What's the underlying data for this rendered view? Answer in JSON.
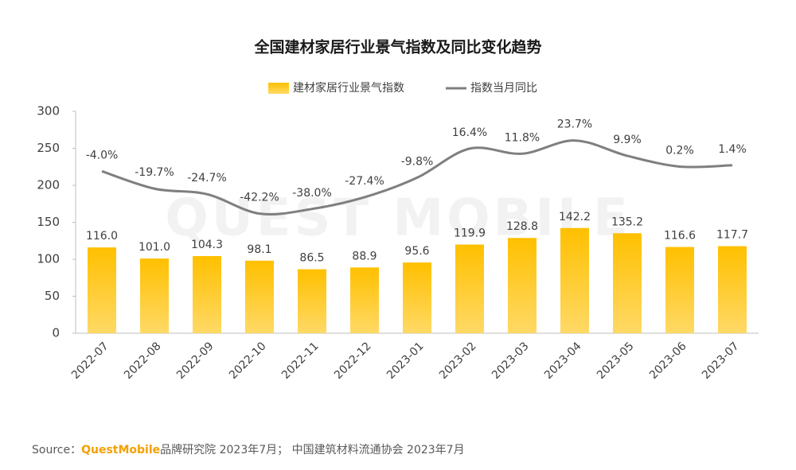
{
  "chart_data": {
    "type": "bar-line",
    "title": "全国建材家居行业景气指数及同比变化趋势",
    "watermark": "QUEST MOBILE",
    "categories": [
      "2022-07",
      "2022-08",
      "2022-09",
      "2022-10",
      "2022-11",
      "2022-12",
      "2023-01",
      "2023-02",
      "2023-03",
      "2023-04",
      "2023-05",
      "2023-06",
      "2023-07"
    ],
    "series": [
      {
        "name": "建材家居行业景气指数",
        "type": "bar",
        "color": "#ffc000",
        "values": [
          116.0,
          101.0,
          104.3,
          98.1,
          86.5,
          88.9,
          95.6,
          119.9,
          128.8,
          142.2,
          135.2,
          116.6,
          117.7
        ],
        "value_labels": [
          "116.0",
          "101.0",
          "104.3",
          "98.1",
          "86.5",
          "88.9",
          "95.6",
          "119.9",
          "128.8",
          "142.2",
          "135.2",
          "116.6",
          "117.7"
        ]
      },
      {
        "name": "指数当月同比",
        "type": "line",
        "color": "#7f7f7f",
        "axis": "y2",
        "smooth": true,
        "values": [
          -4.0,
          -19.7,
          -24.7,
          -42.2,
          -38.0,
          -27.4,
          -9.8,
          16.4,
          11.8,
          23.7,
          9.9,
          0.2,
          1.4
        ],
        "value_labels": [
          "-4.0%",
          "-19.7%",
          "-24.7%",
          "-42.2%",
          "-38.0%",
          "-27.4%",
          "-9.8%",
          "16.4%",
          "11.8%",
          "23.7%",
          "9.9%",
          "0.2%",
          "1.4%"
        ]
      }
    ],
    "ylim": [
      0,
      300
    ],
    "yticks": [
      0,
      50,
      100,
      150,
      200,
      250,
      300
    ],
    "y2lim": [
      -150,
      50
    ],
    "source": {
      "prefix": "Source：",
      "brand": "QuestMobile",
      "text": "品牌研究院 2023年7月； 中国建筑材料流通协会 2023年7月"
    }
  }
}
